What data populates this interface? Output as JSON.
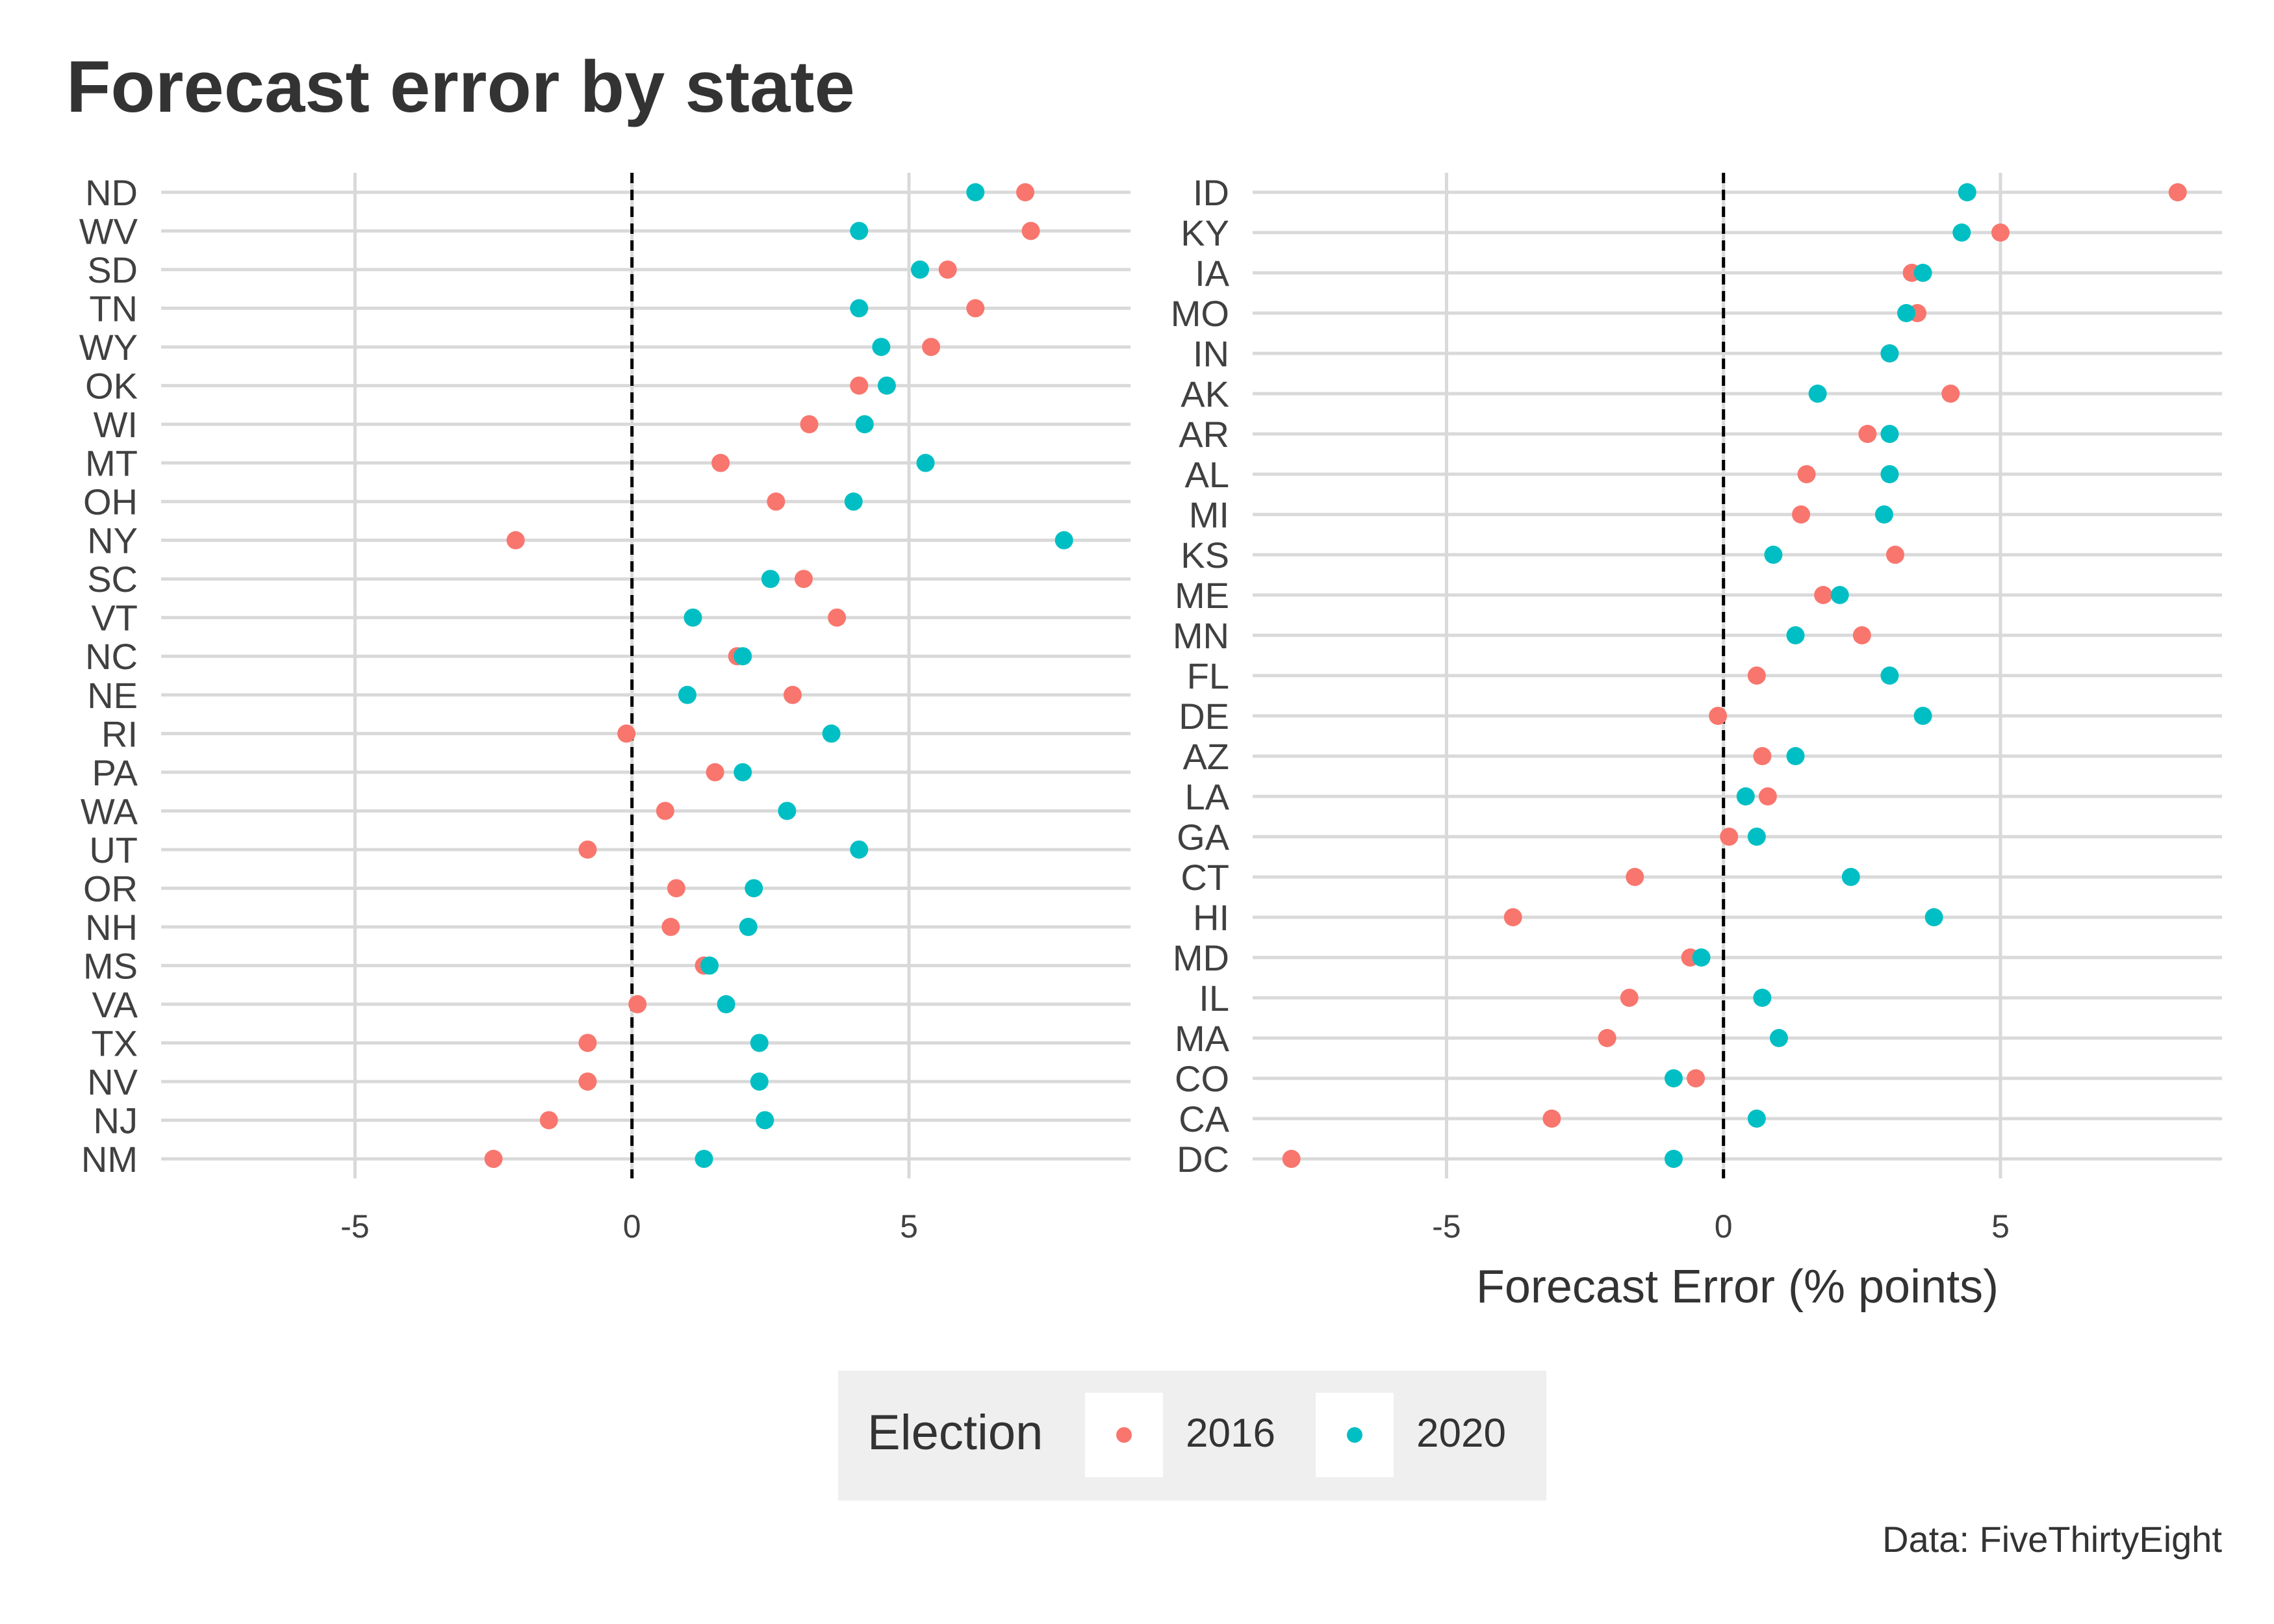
{
  "title": "Forecast error by state",
  "caption": "Data: FiveThirtyEight",
  "colors": {
    "2016": "#F8766D",
    "2020": "#00BFC4",
    "grid": "#d9d9d9",
    "zero_line": "#000000"
  },
  "legend": {
    "title": "Election",
    "position": "bottom",
    "items": [
      {
        "label": "2016",
        "color": "#F8766D"
      },
      {
        "label": "2020",
        "color": "#00BFC4"
      }
    ]
  },
  "chart_data": [
    {
      "type": "scatter",
      "xlabel": "",
      "xlim": [
        -8.5,
        9
      ],
      "xticks": [
        -5,
        0,
        5
      ],
      "xtick_labels": [
        "-5",
        "0",
        "5"
      ],
      "reference_line": 0,
      "grid": true,
      "categories": [
        "ND",
        "WV",
        "SD",
        "TN",
        "WY",
        "OK",
        "WI",
        "MT",
        "OH",
        "NY",
        "SC",
        "VT",
        "NC",
        "NE",
        "RI",
        "PA",
        "WA",
        "UT",
        "OR",
        "NH",
        "MS",
        "VA",
        "TX",
        "NV",
        "NJ",
        "NM"
      ],
      "series": [
        {
          "name": "2016",
          "values": [
            7.1,
            7.2,
            5.7,
            6.2,
            5.4,
            4.1,
            3.2,
            1.6,
            2.6,
            -2.1,
            3.1,
            3.7,
            1.9,
            2.9,
            -0.1,
            1.5,
            0.6,
            -0.8,
            0.8,
            0.7,
            1.3,
            0.1,
            -0.8,
            -0.8,
            -1.5,
            -2.5
          ]
        },
        {
          "name": "2020",
          "values": [
            6.2,
            4.1,
            5.2,
            4.1,
            4.5,
            4.6,
            4.2,
            5.3,
            4.0,
            7.8,
            2.5,
            1.1,
            2.0,
            1.0,
            3.6,
            2.0,
            2.8,
            4.1,
            2.2,
            2.1,
            1.4,
            1.7,
            2.3,
            2.3,
            2.4,
            1.3
          ]
        }
      ]
    },
    {
      "type": "scatter",
      "xlabel": "Forecast Error (% points)",
      "xlim": [
        -8.5,
        9
      ],
      "xticks": [
        -5,
        0,
        5
      ],
      "xtick_labels": [
        "-5",
        "0",
        "5"
      ],
      "reference_line": 0,
      "grid": true,
      "categories": [
        "ID",
        "KY",
        "IA",
        "MO",
        "IN",
        "AK",
        "AR",
        "AL",
        "MI",
        "KS",
        "ME",
        "MN",
        "FL",
        "DE",
        "AZ",
        "LA",
        "GA",
        "CT",
        "HI",
        "MD",
        "IL",
        "MA",
        "CO",
        "CA",
        "DC"
      ],
      "series": [
        {
          "name": "2016",
          "values": [
            8.2,
            5.0,
            3.4,
            3.5,
            3.0,
            4.1,
            2.6,
            1.5,
            1.4,
            3.1,
            1.8,
            2.5,
            0.6,
            -0.1,
            0.7,
            0.8,
            0.1,
            -1.6,
            -3.8,
            -0.6,
            -1.7,
            -2.1,
            -0.5,
            -3.1,
            -7.8
          ]
        },
        {
          "name": "2020",
          "values": [
            4.4,
            4.3,
            3.6,
            3.3,
            3.0,
            1.7,
            3.0,
            3.0,
            2.9,
            0.9,
            2.1,
            1.3,
            3.0,
            3.6,
            1.3,
            0.4,
            0.6,
            2.3,
            3.8,
            -0.4,
            0.7,
            1.0,
            -0.9,
            0.6,
            -0.9
          ]
        }
      ]
    }
  ]
}
